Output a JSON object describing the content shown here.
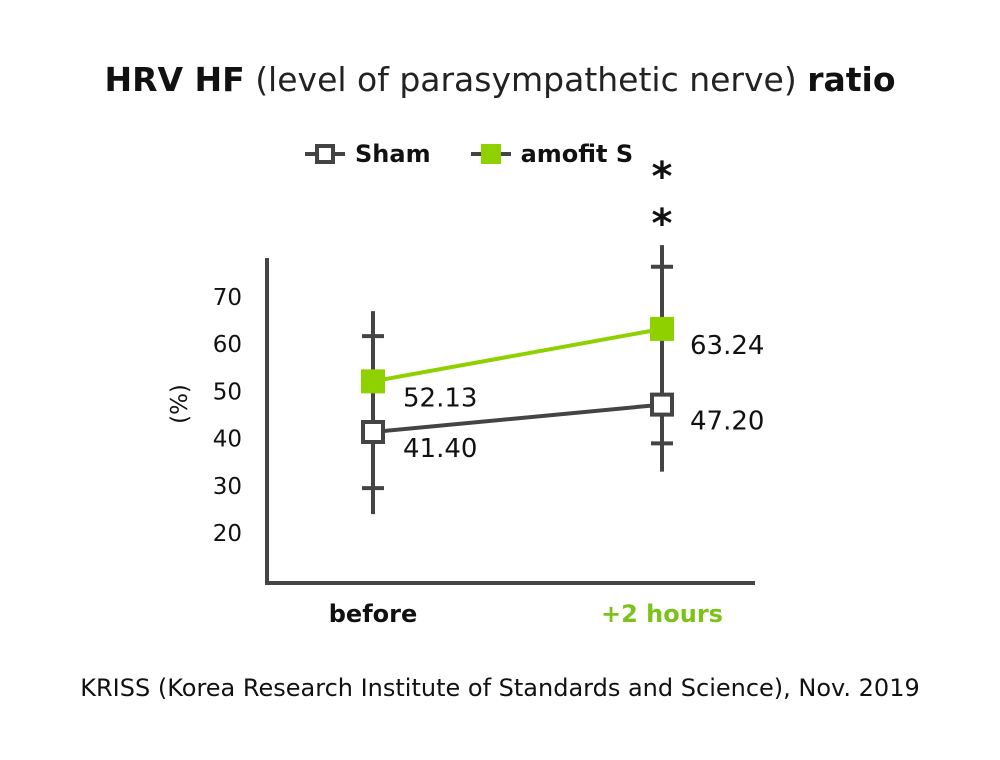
{
  "chart_data": {
    "type": "line",
    "title_bold_1": "HRV HF",
    "title_light": "(level of parasympathetic nerve)",
    "title_bold_2": "ratio",
    "ylabel": "(%)",
    "xlabel": "",
    "ylim": [
      20,
      70
    ],
    "yticks": [
      "70",
      "60",
      "50",
      "40",
      "30",
      "20"
    ],
    "categories": [
      "before",
      "+2 hours"
    ],
    "category_colors": [
      "#111111",
      "#7cc21a"
    ],
    "grid": false,
    "legend_position": "top",
    "series": [
      {
        "name": "Sham",
        "values": [
          41.4,
          47.2
        ],
        "labels": [
          "41.40",
          "47.20"
        ],
        "color": "#444444",
        "marker": "open-square"
      },
      {
        "name": "amofit S",
        "values": [
          52.13,
          63.24
        ],
        "labels": [
          "52.13",
          "63.24"
        ],
        "color": "#8ed000",
        "marker": "filled-square"
      }
    ],
    "error_bars": [
      {
        "category": "before",
        "whisker": [
          24,
          67
        ],
        "caps": [
          29.5,
          61.7
        ]
      },
      {
        "category": "+2 hours",
        "whisker": [
          33,
          81
        ],
        "caps": [
          39,
          76.4
        ]
      }
    ],
    "annotation": "**",
    "annotation_category": "+2 hours"
  },
  "source": "KRISS (Korea Research Institute of Standards and Science), Nov. 2019"
}
